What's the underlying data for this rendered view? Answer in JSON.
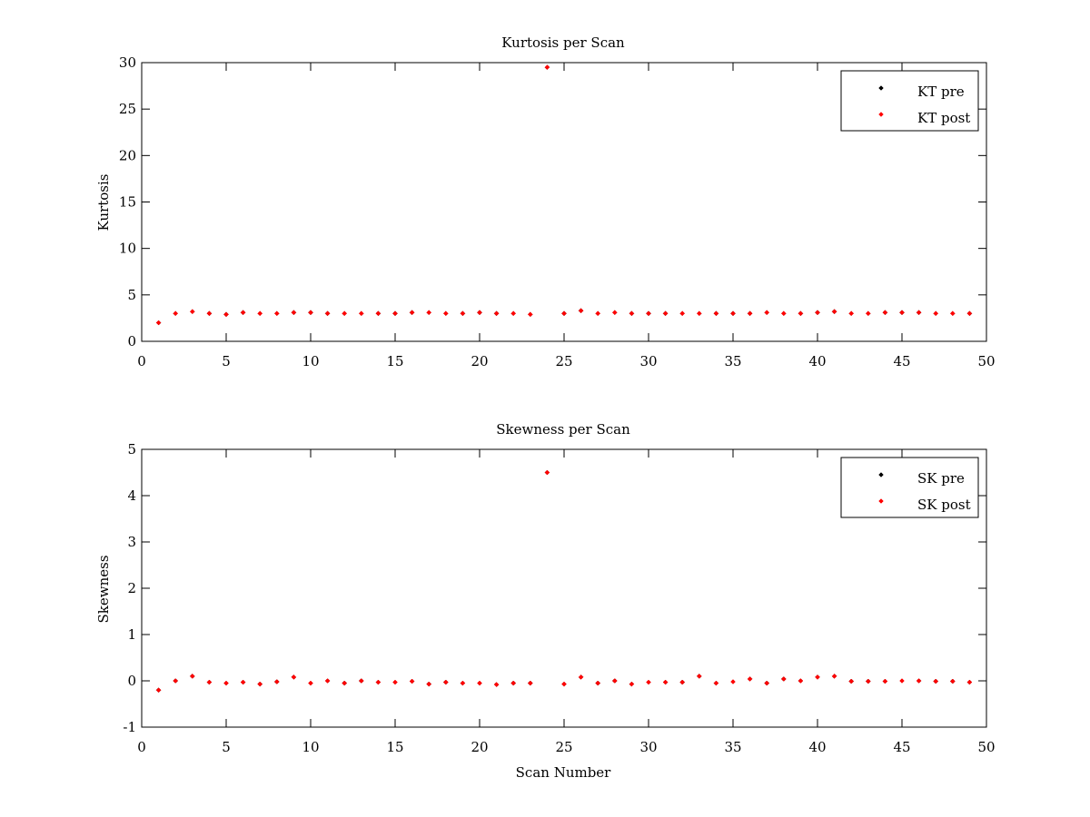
{
  "colors": {
    "pre": "#000000",
    "post": "#ff0000",
    "axis": "#000000",
    "background": "#ffffff"
  },
  "chart_data": [
    {
      "type": "scatter",
      "title": "Kurtosis per Scan",
      "xlabel": "",
      "ylabel": "Kurtosis",
      "xlim": [
        0,
        50
      ],
      "ylim": [
        0,
        30
      ],
      "xticks": [
        0,
        5,
        10,
        15,
        20,
        25,
        30,
        35,
        40,
        45,
        50
      ],
      "yticks": [
        0,
        5,
        10,
        15,
        20,
        25,
        30
      ],
      "grid": false,
      "legend_position": "top-right",
      "x": [
        1,
        2,
        3,
        4,
        5,
        6,
        7,
        8,
        9,
        10,
        11,
        12,
        13,
        14,
        15,
        16,
        17,
        18,
        19,
        20,
        21,
        22,
        23,
        24,
        25,
        26,
        27,
        28,
        29,
        30,
        31,
        32,
        33,
        34,
        35,
        36,
        37,
        38,
        39,
        40,
        41,
        42,
        43,
        44,
        45,
        46,
        47,
        48,
        49
      ],
      "series": [
        {
          "name": "KT pre",
          "color": "#000000",
          "values": [
            2.0,
            3.0,
            3.2,
            3.0,
            2.9,
            3.1,
            3.0,
            3.0,
            3.1,
            3.1,
            3.0,
            3.0,
            3.0,
            3.0,
            3.0,
            3.1,
            3.1,
            3.0,
            3.0,
            3.1,
            3.0,
            3.0,
            2.9,
            29.5,
            3.0,
            3.3,
            3.0,
            3.1,
            3.0,
            3.0,
            3.0,
            3.0,
            3.0,
            3.0,
            3.0,
            3.0,
            3.1,
            3.0,
            3.0,
            3.1,
            3.2,
            3.0,
            3.0,
            3.1,
            3.1,
            3.1,
            3.0,
            3.0,
            3.0
          ]
        },
        {
          "name": "KT post",
          "color": "#ff0000",
          "values": [
            2.0,
            3.0,
            3.2,
            3.0,
            2.9,
            3.1,
            3.0,
            3.0,
            3.1,
            3.1,
            3.0,
            3.0,
            3.0,
            3.0,
            3.0,
            3.1,
            3.1,
            3.0,
            3.0,
            3.1,
            3.0,
            3.0,
            2.9,
            29.5,
            3.0,
            3.3,
            3.0,
            3.1,
            3.0,
            3.0,
            3.0,
            3.0,
            3.0,
            3.0,
            3.0,
            3.0,
            3.1,
            3.0,
            3.0,
            3.1,
            3.2,
            3.0,
            3.0,
            3.1,
            3.1,
            3.1,
            3.0,
            3.0,
            3.0
          ]
        }
      ]
    },
    {
      "type": "scatter",
      "title": "Skewness per Scan",
      "xlabel": "Scan Number",
      "ylabel": "Skewness",
      "xlim": [
        0,
        50
      ],
      "ylim": [
        -1,
        5
      ],
      "xticks": [
        0,
        5,
        10,
        15,
        20,
        25,
        30,
        35,
        40,
        45,
        50
      ],
      "yticks": [
        -1,
        0,
        1,
        2,
        3,
        4,
        5
      ],
      "grid": false,
      "legend_position": "top-right",
      "x": [
        1,
        2,
        3,
        4,
        5,
        6,
        7,
        8,
        9,
        10,
        11,
        12,
        13,
        14,
        15,
        16,
        17,
        18,
        19,
        20,
        21,
        22,
        23,
        24,
        25,
        26,
        27,
        28,
        29,
        30,
        31,
        32,
        33,
        34,
        35,
        36,
        37,
        38,
        39,
        40,
        41,
        42,
        43,
        44,
        45,
        46,
        47,
        48,
        49
      ],
      "series": [
        {
          "name": "SK pre",
          "color": "#000000",
          "values": [
            -0.2,
            0.0,
            0.1,
            -0.03,
            -0.05,
            -0.03,
            -0.07,
            -0.02,
            0.08,
            -0.05,
            0.0,
            -0.05,
            0.0,
            -0.03,
            -0.03,
            -0.01,
            -0.07,
            -0.03,
            -0.05,
            -0.05,
            -0.08,
            -0.05,
            -0.05,
            4.5,
            -0.07,
            0.08,
            -0.05,
            0.0,
            -0.07,
            -0.03,
            -0.03,
            -0.03,
            0.1,
            -0.05,
            -0.02,
            0.04,
            -0.05,
            0.04,
            0.0,
            0.08,
            0.1,
            -0.01,
            -0.01,
            -0.01,
            0.0,
            0.0,
            -0.01,
            -0.01,
            -0.03
          ]
        },
        {
          "name": "SK post",
          "color": "#ff0000",
          "values": [
            -0.2,
            0.0,
            0.1,
            -0.03,
            -0.05,
            -0.03,
            -0.07,
            -0.02,
            0.08,
            -0.05,
            0.0,
            -0.05,
            0.0,
            -0.03,
            -0.03,
            -0.01,
            -0.07,
            -0.03,
            -0.05,
            -0.05,
            -0.08,
            -0.05,
            -0.05,
            4.5,
            -0.07,
            0.08,
            -0.05,
            0.0,
            -0.07,
            -0.03,
            -0.03,
            -0.03,
            0.1,
            -0.05,
            -0.02,
            0.04,
            -0.05,
            0.04,
            0.0,
            0.08,
            0.1,
            -0.01,
            -0.01,
            -0.01,
            0.0,
            0.0,
            -0.01,
            -0.01,
            -0.03
          ]
        }
      ]
    }
  ]
}
